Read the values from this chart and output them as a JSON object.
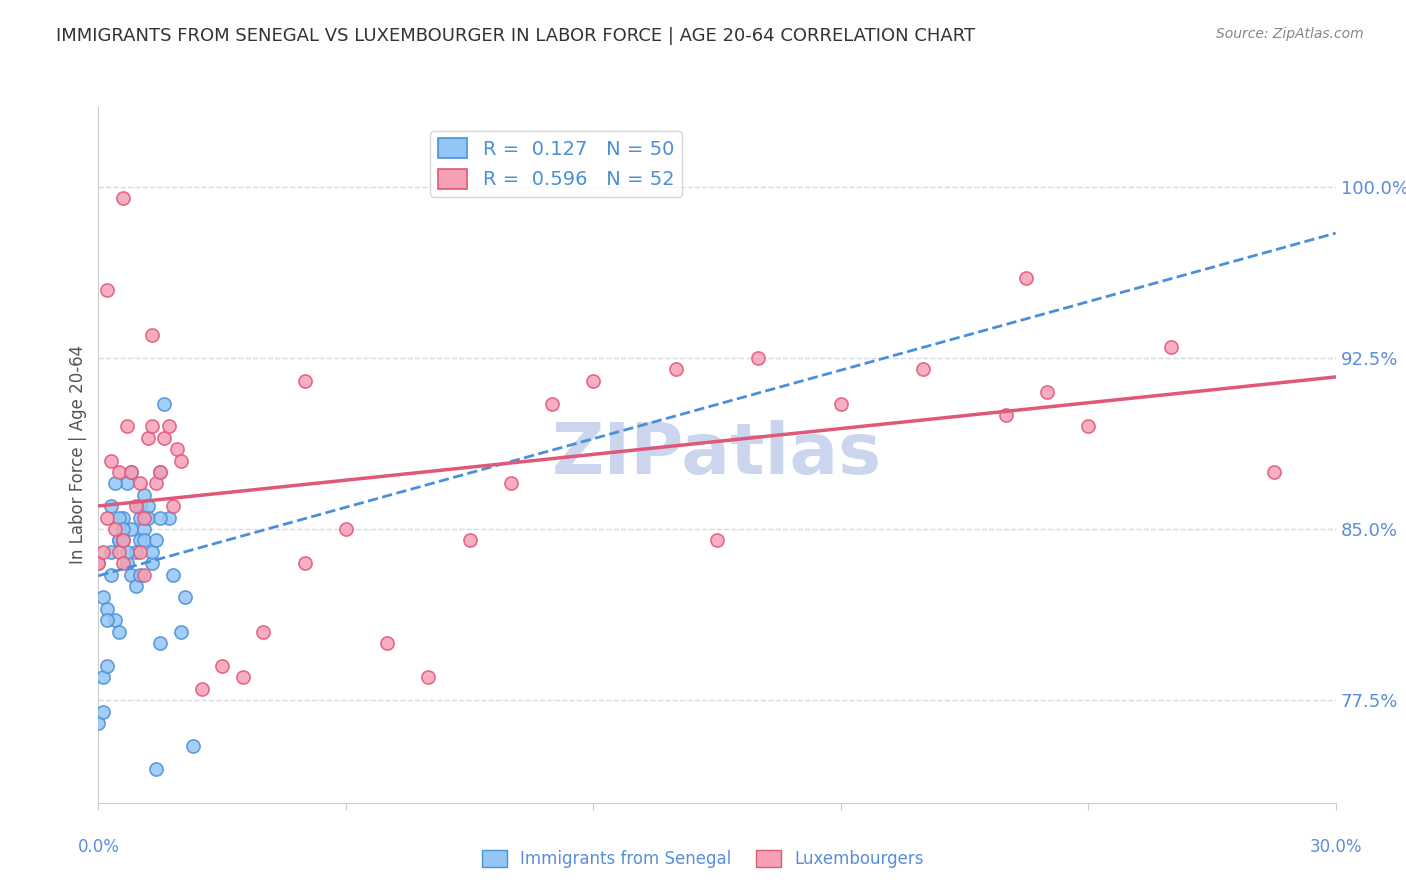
{
  "title": "IMMIGRANTS FROM SENEGAL VS LUXEMBOURGER IN LABOR FORCE | AGE 20-64 CORRELATION CHART",
  "source": "Source: ZipAtlas.com",
  "ylabel": "In Labor Force | Age 20-64",
  "xlim": [
    0.0,
    30.0
  ],
  "ylim": [
    73.0,
    103.5
  ],
  "yticks": [
    77.5,
    85.0,
    92.5,
    100.0
  ],
  "ytick_labels": [
    "77.5%",
    "85.0%",
    "92.5%",
    "100.0%"
  ],
  "series1_label": "Immigrants from Senegal",
  "series1_R": "0.127",
  "series1_N": "50",
  "series1_color": "#94c6f5",
  "series1_line_color": "#4a90d9",
  "series2_label": "Luxembourgers",
  "series2_R": "0.596",
  "series2_N": "52",
  "series2_color": "#f5a0b5",
  "series2_line_color": "#e05878",
  "background_color": "#ffffff",
  "grid_color": "#d8d8e8",
  "watermark_text": "ZIPatlas",
  "watermark_color": "#ccd5ee",
  "title_fontsize": 13,
  "series1_x": [
    0.0,
    0.1,
    0.2,
    0.3,
    0.4,
    0.5,
    0.5,
    0.6,
    0.7,
    0.7,
    0.8,
    0.8,
    0.9,
    1.0,
    1.0,
    1.0,
    1.1,
    1.1,
    1.2,
    1.3,
    1.4,
    1.5,
    1.5,
    1.7,
    1.8,
    2.0,
    2.1,
    2.3,
    0.0,
    0.1,
    0.1,
    0.2,
    0.2,
    0.3,
    0.3,
    0.4,
    0.5,
    0.5,
    0.6,
    0.6,
    0.7,
    0.8,
    0.9,
    1.0,
    1.1,
    1.2,
    1.3,
    1.4,
    1.5,
    1.6
  ],
  "series1_y": [
    83.5,
    82.0,
    81.5,
    83.0,
    81.0,
    84.5,
    80.5,
    85.5,
    83.5,
    87.0,
    85.0,
    87.5,
    84.0,
    85.5,
    84.5,
    86.0,
    86.5,
    85.0,
    86.0,
    83.5,
    74.5,
    80.0,
    87.5,
    85.5,
    83.0,
    80.5,
    82.0,
    75.5,
    76.5,
    77.0,
    78.5,
    79.0,
    81.0,
    84.0,
    86.0,
    87.0,
    84.5,
    85.5,
    84.5,
    85.0,
    84.0,
    83.0,
    82.5,
    83.0,
    84.5,
    85.5,
    84.0,
    84.5,
    85.5,
    90.5
  ],
  "series2_x": [
    0.0,
    0.1,
    0.2,
    0.3,
    0.4,
    0.5,
    0.5,
    0.6,
    0.6,
    0.7,
    0.8,
    0.9,
    1.0,
    1.0,
    1.1,
    1.1,
    1.2,
    1.3,
    1.4,
    1.5,
    1.6,
    1.7,
    1.8,
    1.9,
    2.0,
    2.5,
    3.0,
    3.5,
    4.0,
    5.0,
    6.0,
    7.0,
    8.0,
    9.0,
    10.0,
    12.0,
    14.0,
    16.0,
    18.0,
    20.0,
    22.0,
    23.0,
    24.0,
    26.0,
    28.5,
    0.2,
    0.6,
    1.3,
    5.0,
    11.0,
    15.0,
    22.5
  ],
  "series2_y": [
    83.5,
    84.0,
    85.5,
    88.0,
    85.0,
    87.5,
    84.0,
    84.5,
    83.5,
    89.5,
    87.5,
    86.0,
    84.0,
    87.0,
    85.5,
    83.0,
    89.0,
    89.5,
    87.0,
    87.5,
    89.0,
    89.5,
    86.0,
    88.5,
    88.0,
    78.0,
    79.0,
    78.5,
    80.5,
    83.5,
    85.0,
    80.0,
    78.5,
    84.5,
    87.0,
    91.5,
    92.0,
    92.5,
    90.5,
    92.0,
    90.0,
    91.0,
    89.5,
    93.0,
    87.5,
    95.5,
    99.5,
    93.5,
    91.5,
    90.5,
    84.5,
    96.0
  ]
}
